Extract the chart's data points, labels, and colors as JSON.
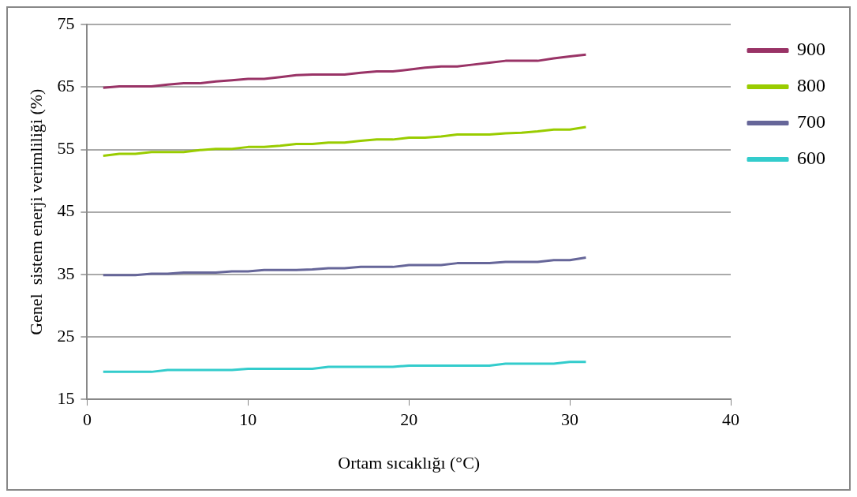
{
  "chart_data": {
    "type": "line",
    "xlabel": "Ortam sıcaklığı (°C)",
    "ylabel": "Genel  sistem enerji verimliliği (%)",
    "x": [
      1,
      2,
      3,
      4,
      5,
      6,
      7,
      8,
      9,
      10,
      11,
      12,
      13,
      14,
      15,
      16,
      17,
      18,
      19,
      20,
      21,
      22,
      23,
      24,
      25,
      26,
      27,
      28,
      29,
      30,
      31
    ],
    "series": [
      {
        "name": "900",
        "color": "#993366",
        "values": [
          64.9,
          65.1,
          65.1,
          65.1,
          65.4,
          65.6,
          65.6,
          65.9,
          66.1,
          66.3,
          66.3,
          66.6,
          66.9,
          67.0,
          67.0,
          67.0,
          67.3,
          67.5,
          67.5,
          67.8,
          68.1,
          68.3,
          68.3,
          68.6,
          68.9,
          69.2,
          69.2,
          69.2,
          69.6,
          69.9,
          70.2
        ]
      },
      {
        "name": "800",
        "color": "#99cc00",
        "values": [
          54.0,
          54.3,
          54.3,
          54.6,
          54.6,
          54.6,
          54.9,
          55.1,
          55.1,
          55.4,
          55.4,
          55.6,
          55.9,
          55.9,
          56.1,
          56.1,
          56.4,
          56.6,
          56.6,
          56.9,
          56.9,
          57.1,
          57.4,
          57.4,
          57.4,
          57.6,
          57.7,
          57.9,
          58.2,
          58.2,
          58.6
        ]
      },
      {
        "name": "700",
        "color": "#666699",
        "values": [
          34.9,
          34.9,
          34.9,
          35.1,
          35.1,
          35.3,
          35.3,
          35.3,
          35.5,
          35.5,
          35.7,
          35.7,
          35.7,
          35.8,
          36.0,
          36.0,
          36.2,
          36.2,
          36.2,
          36.5,
          36.5,
          36.5,
          36.8,
          36.8,
          36.8,
          37.0,
          37.0,
          37.0,
          37.3,
          37.3,
          37.7
        ]
      },
      {
        "name": "600",
        "color": "#33cccc",
        "values": [
          19.4,
          19.4,
          19.4,
          19.4,
          19.7,
          19.7,
          19.7,
          19.7,
          19.7,
          19.9,
          19.9,
          19.9,
          19.9,
          19.9,
          20.2,
          20.2,
          20.2,
          20.2,
          20.2,
          20.4,
          20.4,
          20.4,
          20.4,
          20.4,
          20.4,
          20.7,
          20.7,
          20.7,
          20.7,
          21.0,
          21.0
        ]
      }
    ],
    "xlim": [
      0,
      40
    ],
    "xticks": [
      0,
      10,
      20,
      30,
      40
    ],
    "ylim": [
      15,
      75
    ],
    "yticks": [
      15,
      25,
      35,
      45,
      55,
      65,
      75
    ],
    "grid": "y",
    "legend": "top right",
    "marker": "none",
    "line_style": "solid"
  }
}
